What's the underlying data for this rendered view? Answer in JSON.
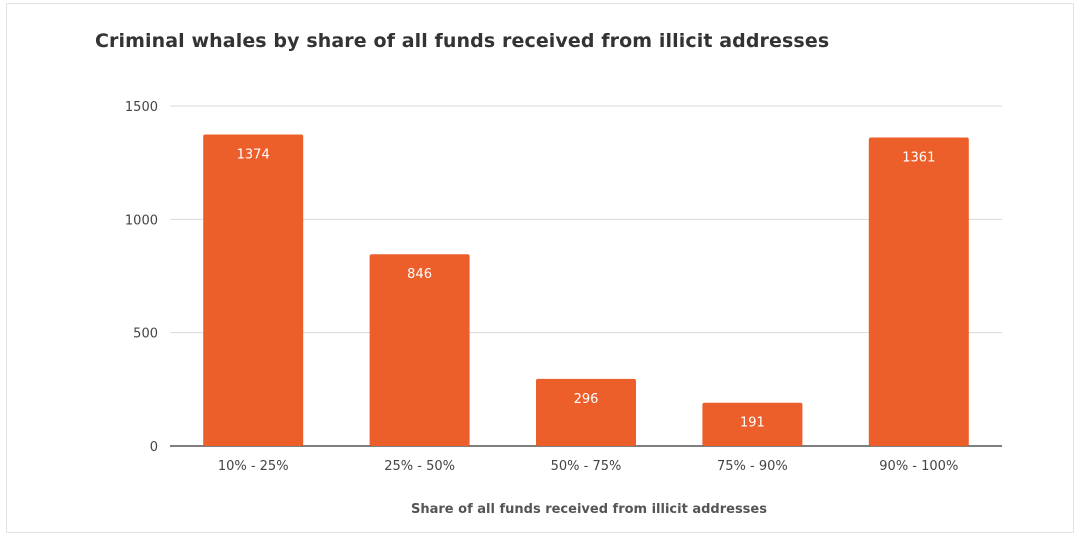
{
  "chart_data": {
    "type": "bar",
    "title": "Criminal whales by share of all funds received from illicit addresses",
    "xlabel": "Share of all funds received from illicit addresses",
    "ylabel": "",
    "categories": [
      "10% - 25%",
      "25% - 50%",
      "50% - 75%",
      "75% - 90%",
      "90% - 100%"
    ],
    "values": [
      1374,
      846,
      296,
      191,
      1361
    ],
    "ylim": [
      0,
      1500
    ],
    "yticks": [
      0,
      500,
      1000,
      1500
    ],
    "grid": true,
    "legend": "none",
    "bar_color": "#ec5f2b",
    "data_labels": true
  }
}
